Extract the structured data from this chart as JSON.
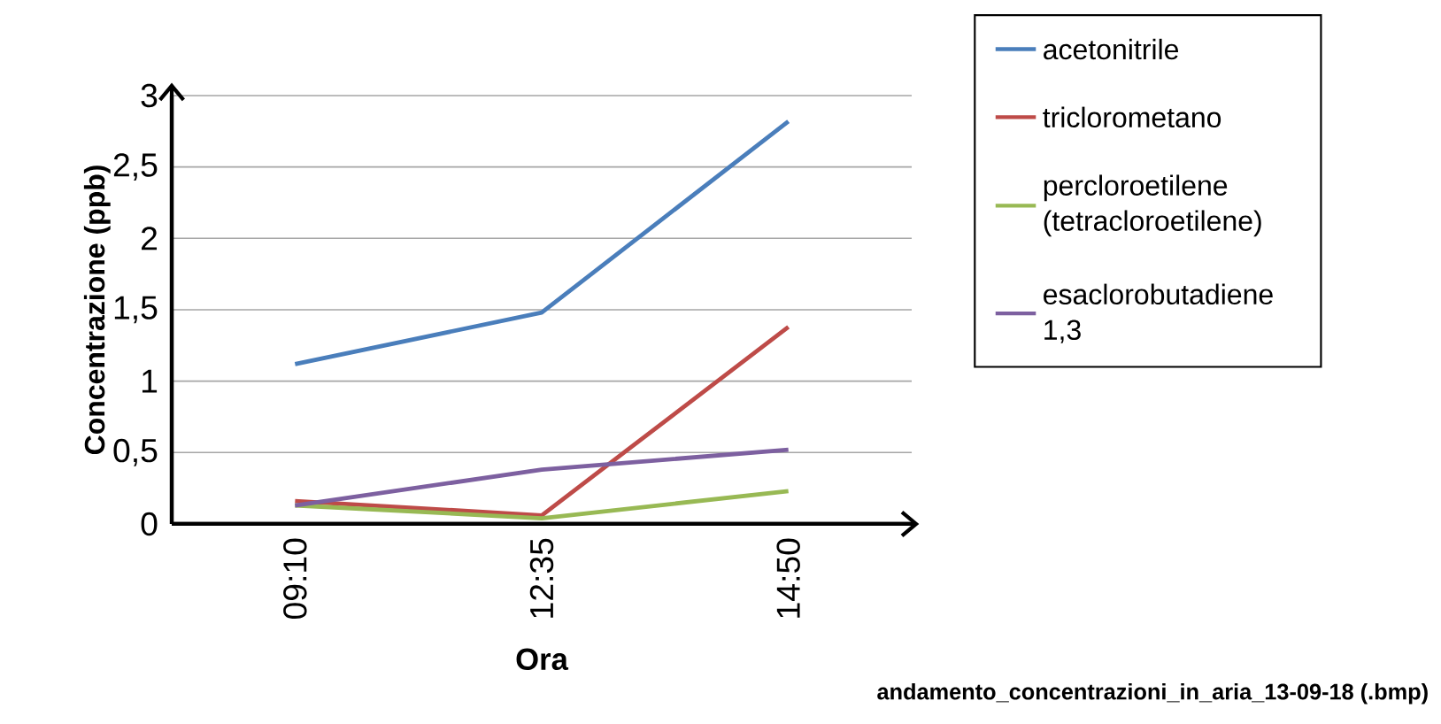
{
  "chart_data": {
    "type": "line",
    "xlabel": "Ora",
    "ylabel": "Concentrazione (ppb)",
    "categories": [
      "09:10",
      "12:35",
      "14:50"
    ],
    "series": [
      {
        "name": "acetonitrile",
        "color": "#4a7ebb",
        "values": [
          1.12,
          1.48,
          2.82
        ]
      },
      {
        "name": "triclorometano",
        "color": "#be4b48",
        "values": [
          0.16,
          0.06,
          1.38
        ]
      },
      {
        "name": "percloroetilene (tetracloroetilene)",
        "color": "#98b954",
        "values": [
          0.13,
          0.04,
          0.23
        ]
      },
      {
        "name": "esaclorobutadiene 1,3",
        "color": "#7d60a0",
        "values": [
          0.13,
          0.38,
          0.52
        ]
      }
    ],
    "ylim": [
      0,
      3
    ],
    "yticks": [
      0,
      {
        "value": 0.5,
        "label": "0,5"
      },
      1,
      {
        "value": 1.5,
        "label": "1,5"
      },
      2,
      {
        "value": 2.5,
        "label": "2,5"
      },
      3
    ],
    "grid": "y",
    "legend": "right",
    "marker": "none",
    "line_style": "solid",
    "annotations": [
      "andamento_concentrazioni_in_aria_13-09-18 (.bmp)"
    ]
  }
}
